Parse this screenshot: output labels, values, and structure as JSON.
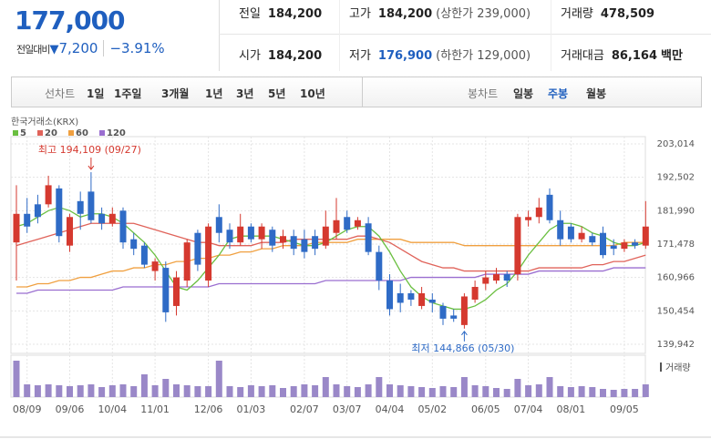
{
  "header": {
    "price": "177,000",
    "change_label": "전일대비",
    "change": "7,200",
    "change_pct": "−3.91%",
    "stats": [
      {
        "label": "전일",
        "value": "184,200"
      },
      {
        "label": "고가",
        "value": "184,200",
        "note": "(상한가 239,000)"
      },
      {
        "label": "거래량",
        "value": "478,509"
      },
      {
        "label": "시가",
        "value": "184,200"
      },
      {
        "label": "저가",
        "value": "176,900",
        "note": "(하한가 129,000)"
      },
      {
        "label": "거래대금",
        "value": "86,164",
        "unit": "백만"
      }
    ]
  },
  "toolbar": {
    "line_label": "선차트",
    "line_periods": [
      "1일",
      "1주일",
      "3개월",
      "1년",
      "3년",
      "5년",
      "10년"
    ],
    "candle_label": "봉차트",
    "candle_periods": [
      "일봉",
      "주봉",
      "월봉"
    ]
  },
  "chart_data": [
    {
      "type": "candlestick",
      "source": "한국거래소(KRX)",
      "up_color": "#d5392f",
      "down_color": "#2f6bc6",
      "annotations": [
        "최고 194,109 (09/27)",
        "최저 144,866 (05/30)"
      ],
      "categories": [
        null,
        "08/09",
        null,
        null,
        null,
        "09/06",
        null,
        null,
        null,
        "10/04",
        null,
        null,
        null,
        "11/01",
        null,
        null,
        null,
        null,
        "12/06",
        null,
        null,
        null,
        "01/03",
        null,
        null,
        null,
        null,
        "02/07",
        null,
        null,
        null,
        "03/07",
        null,
        null,
        null,
        "04/04",
        null,
        null,
        null,
        "05/02",
        null,
        null,
        null,
        null,
        "06/05",
        null,
        null,
        null,
        "07/04",
        null,
        null,
        null,
        "08/01",
        null,
        null,
        null,
        null,
        "09/05",
        null,
        null
      ],
      "open": [
        172000,
        181000,
        184000,
        184000,
        189000,
        171000,
        185000,
        188000,
        181000,
        178000,
        182000,
        173000,
        171000,
        163000,
        164000,
        152000,
        160000,
        175000,
        160000,
        180000,
        176000,
        172000,
        177000,
        173000,
        176000,
        172000,
        174000,
        173000,
        174000,
        171000,
        175000,
        180000,
        177000,
        178000,
        169000,
        160000,
        156000,
        156000,
        152000,
        154000,
        152000,
        149000,
        146000,
        154000,
        159000,
        160000,
        162000,
        162000,
        179000,
        180000,
        187000,
        179000,
        177000,
        173000,
        174000,
        175000,
        171000,
        170000,
        172000,
        171000
      ],
      "high": [
        190000,
        186000,
        187000,
        193000,
        190000,
        181000,
        188000,
        194109,
        183000,
        183000,
        183000,
        175000,
        172000,
        167000,
        166000,
        163000,
        173000,
        176000,
        178000,
        184000,
        178000,
        181000,
        178000,
        178000,
        177000,
        176000,
        176000,
        176000,
        176000,
        182000,
        186000,
        182000,
        180000,
        180000,
        171000,
        162000,
        159000,
        157000,
        158000,
        156000,
        153000,
        151000,
        156000,
        160000,
        163000,
        164000,
        163000,
        181000,
        182000,
        186000,
        189000,
        182000,
        178000,
        177000,
        175000,
        177000,
        173000,
        173000,
        173000,
        185000
      ],
      "low": [
        160000,
        175000,
        178000,
        183000,
        172000,
        169000,
        176000,
        178000,
        176000,
        177000,
        170000,
        168000,
        164000,
        160000,
        147000,
        149000,
        158000,
        163000,
        158000,
        172000,
        170000,
        171000,
        172000,
        170000,
        169000,
        170000,
        168000,
        167000,
        168000,
        170000,
        173000,
        175000,
        176000,
        168000,
        157000,
        149000,
        150000,
        152000,
        151000,
        150000,
        146000,
        147000,
        144866,
        153000,
        157000,
        159000,
        158000,
        160000,
        177000,
        178000,
        178000,
        171000,
        172000,
        172000,
        171000,
        167000,
        168000,
        169000,
        170000,
        170000
      ],
      "close": [
        181000,
        177000,
        180000,
        190000,
        174000,
        180000,
        181000,
        179000,
        178000,
        181000,
        172000,
        170000,
        165000,
        166000,
        150000,
        161000,
        172000,
        165000,
        177000,
        175000,
        172000,
        177000,
        173000,
        177000,
        171000,
        174000,
        170000,
        169000,
        170000,
        177000,
        179000,
        176000,
        179000,
        169000,
        160000,
        151000,
        153000,
        154000,
        156000,
        153000,
        148000,
        148000,
        155000,
        158000,
        161000,
        162000,
        160000,
        180000,
        180000,
        183000,
        179000,
        173000,
        173000,
        175000,
        172000,
        168000,
        170000,
        172000,
        171000,
        177000
      ],
      "series": [
        {
          "name": "5",
          "color": "#6abf40",
          "values": [
            177000,
            178000,
            180000,
            182000,
            183000,
            182000,
            180000,
            181000,
            181000,
            180000,
            178000,
            175000,
            172000,
            168000,
            163000,
            158000,
            157000,
            160000,
            164000,
            168000,
            173000,
            174000,
            174000,
            174000,
            174000,
            173000,
            172000,
            171000,
            171000,
            172000,
            174000,
            176000,
            177000,
            177000,
            174000,
            169000,
            163000,
            158000,
            155000,
            153000,
            152000,
            151000,
            151000,
            152000,
            154000,
            157000,
            159000,
            163000,
            168000,
            172000,
            176000,
            178000,
            178000,
            177000,
            175000,
            174000,
            172000,
            171000,
            171000,
            172000
          ]
        },
        {
          "name": "20",
          "color": "#e0635a",
          "values": [
            171000,
            172000,
            173000,
            174000,
            175000,
            176000,
            177000,
            178000,
            178000,
            178000,
            178000,
            178000,
            177000,
            176000,
            175000,
            174000,
            173000,
            172000,
            172000,
            171000,
            171000,
            171000,
            171000,
            172000,
            172000,
            172000,
            173000,
            173000,
            173000,
            173000,
            173000,
            173000,
            174000,
            174000,
            173000,
            172000,
            170000,
            168000,
            166000,
            165000,
            164000,
            164000,
            163000,
            163000,
            163000,
            163000,
            163000,
            163000,
            163000,
            164000,
            164000,
            164000,
            164000,
            164000,
            165000,
            165000,
            166000,
            166000,
            167000,
            168000
          ]
        },
        {
          "name": "60",
          "color": "#f0a040",
          "values": [
            158000,
            158000,
            159000,
            159000,
            160000,
            160000,
            161000,
            161000,
            162000,
            163000,
            163000,
            164000,
            164000,
            165000,
            165000,
            166000,
            166000,
            167000,
            167000,
            168000,
            168000,
            169000,
            169000,
            170000,
            170000,
            171000,
            171000,
            171000,
            172000,
            172000,
            172000,
            172000,
            173000,
            173000,
            173000,
            173000,
            173000,
            172000,
            172000,
            172000,
            172000,
            172000,
            171000,
            171000,
            171000,
            171000,
            171000,
            171000,
            171000,
            171000,
            171000,
            171000,
            171000,
            171000,
            171000,
            171000,
            171000,
            172000,
            172000,
            172000
          ]
        },
        {
          "name": "120",
          "color": "#9a6ed0",
          "values": [
            156000,
            156000,
            157000,
            157000,
            157000,
            157000,
            157000,
            157000,
            157000,
            157000,
            158000,
            158000,
            158000,
            158000,
            158000,
            158000,
            158000,
            158000,
            158000,
            159000,
            159000,
            159000,
            159000,
            159000,
            159000,
            159000,
            159000,
            159000,
            159000,
            160000,
            160000,
            160000,
            160000,
            160000,
            160000,
            160000,
            160000,
            161000,
            161000,
            161000,
            161000,
            161000,
            161000,
            161000,
            162000,
            162000,
            162000,
            162000,
            162000,
            163000,
            163000,
            163000,
            163000,
            163000,
            163000,
            163000,
            164000,
            164000,
            164000,
            164000
          ]
        }
      ],
      "ylim": [
        139942,
        203014
      ],
      "yticks": [
        {
          "value": 203014,
          "label": "203,014"
        },
        {
          "value": 192502,
          "label": "192,502"
        },
        {
          "value": 181990,
          "label": "181,990"
        },
        {
          "value": 171478,
          "label": "171,478"
        },
        {
          "value": 160966,
          "label": "160,966"
        },
        {
          "value": 150454,
          "label": "150,454"
        },
        {
          "value": 139942,
          "label": "139,942"
        }
      ],
      "grid": true
    },
    {
      "type": "bar",
      "y_label": "거래량",
      "color": "#9a88c8",
      "ylim": [
        0,
        3600000
      ],
      "values": [
        3600000,
        1260000,
        1170000,
        1260000,
        1170000,
        1080000,
        1170000,
        1260000,
        990000,
        1170000,
        1260000,
        1080000,
        2250000,
        1170000,
        1800000,
        1260000,
        1170000,
        1080000,
        1080000,
        3600000,
        1080000,
        990000,
        1170000,
        1080000,
        1170000,
        900000,
        1080000,
        1260000,
        1170000,
        1980000,
        1260000,
        1080000,
        990000,
        1260000,
        1980000,
        1260000,
        1170000,
        1080000,
        990000,
        900000,
        1080000,
        990000,
        1980000,
        1170000,
        1080000,
        900000,
        810000,
        1800000,
        1170000,
        1260000,
        1980000,
        1080000,
        990000,
        1080000,
        990000,
        810000,
        720000,
        810000,
        810000,
        1260000
      ]
    }
  ]
}
